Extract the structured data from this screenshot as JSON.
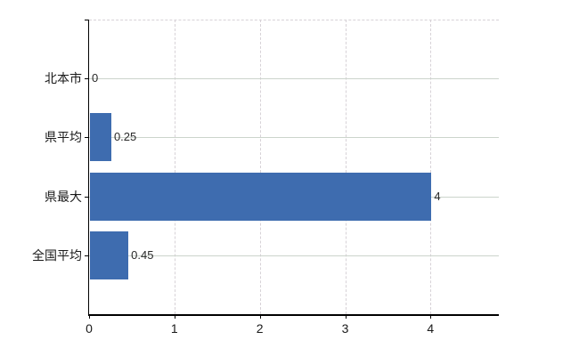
{
  "chart": {
    "bar_color": "#3e6caf",
    "axis_color": "#000000",
    "hgrid_color": "#ccd4cc",
    "vgrid_color": "#d7d2d7",
    "background_color": "#ffffff"
  },
  "chart_data": {
    "type": "bar",
    "orientation": "horizontal",
    "categories": [
      "北本市",
      "県平均",
      "県最大",
      "全国平均"
    ],
    "values": [
      0,
      0.25,
      4,
      0.45
    ],
    "value_labels": [
      "0",
      "0.25",
      "4",
      "0.45"
    ],
    "x_ticks": [
      "0",
      "1",
      "2",
      "3",
      "4"
    ],
    "x_tick_values": [
      0,
      1,
      2,
      3,
      4
    ],
    "xlim": [
      0,
      4.8
    ],
    "grid": true,
    "legend": false
  }
}
